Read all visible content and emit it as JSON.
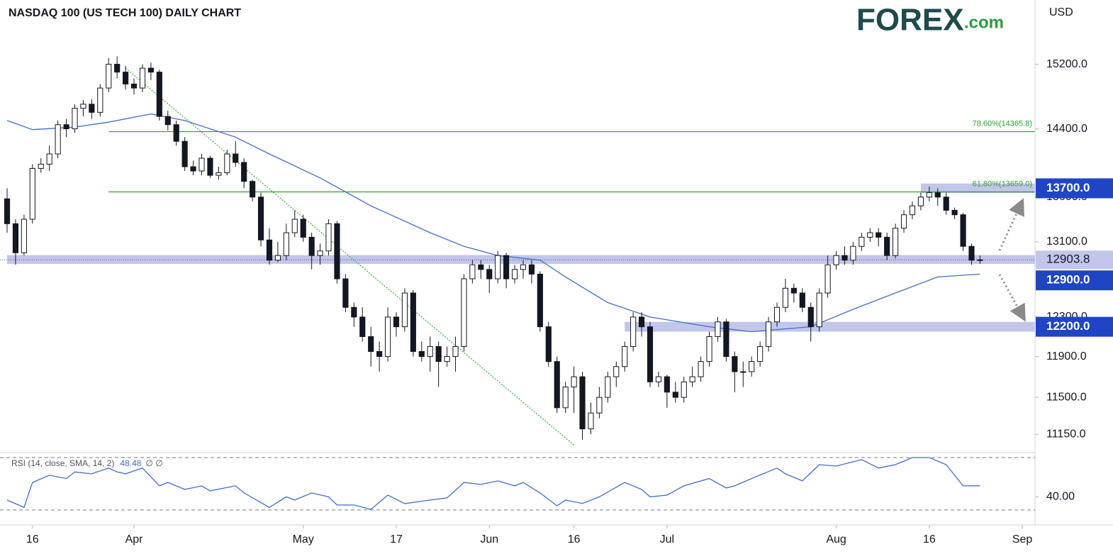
{
  "chart_data": {
    "type": "candlestick",
    "title": "NASDAQ 100 (US TECH 100) DAILY CHART",
    "logo": {
      "brand": "FOREX",
      "suffix": ".com"
    },
    "currency": "USD",
    "log": true,
    "colors": {
      "up": "#ffffff",
      "down": "#131722",
      "wick": "#131722"
    },
    "xlim": [
      -0.84,
      121.5
    ],
    "xticks": [
      {
        "value": 3,
        "label": "16"
      },
      {
        "value": 15,
        "label": "Apr"
      },
      {
        "value": 35,
        "label": "May"
      },
      {
        "value": 46,
        "label": "17"
      },
      {
        "value": 57,
        "label": "Jun"
      },
      {
        "value": 67,
        "label": "16"
      },
      {
        "value": 78,
        "label": "Jul"
      },
      {
        "value": 98,
        "label": "Aug"
      },
      {
        "value": 109,
        "label": "16"
      },
      {
        "value": 120,
        "label": "Sep"
      }
    ],
    "ylim": [
      10980,
      16040
    ],
    "yticks": [
      {
        "value": 15200,
        "label": "15200.0"
      },
      {
        "value": 14400,
        "label": "14400.0"
      },
      {
        "value": 13600,
        "label": "13600.0"
      },
      {
        "value": 13100,
        "label": "13100.0"
      },
      {
        "value": 12300,
        "label": "12300.0"
      },
      {
        "value": 11900,
        "label": "11900.0"
      },
      {
        "value": 11500,
        "label": "11500.0"
      },
      {
        "value": 11150,
        "label": "11150.0"
      }
    ],
    "x": [
      0,
      1,
      2,
      3,
      4,
      5,
      6,
      7,
      8,
      9,
      10,
      11,
      12,
      13,
      14,
      15,
      16,
      17,
      18,
      19,
      20,
      21,
      22,
      23,
      24,
      25,
      26,
      27,
      28,
      29,
      30,
      31,
      32,
      33,
      34,
      35,
      36,
      37,
      38,
      39,
      40,
      41,
      42,
      43,
      44,
      45,
      46,
      47,
      48,
      49,
      50,
      51,
      52,
      53,
      54,
      55,
      56,
      57,
      58,
      59,
      60,
      61,
      62,
      63,
      64,
      65,
      66,
      67,
      68,
      69,
      70,
      71,
      72,
      73,
      74,
      75,
      76,
      77,
      78,
      79,
      80,
      81,
      82,
      83,
      84,
      85,
      86,
      87,
      88,
      89,
      90,
      91,
      92,
      93,
      94,
      95,
      96,
      97,
      98,
      99,
      100,
      101,
      102,
      103,
      104,
      105,
      106,
      107,
      108,
      109,
      110,
      111,
      112,
      113,
      114,
      115
    ],
    "open": [
      13580,
      13300,
      12980,
      13350,
      13930,
      13980,
      14100,
      14450,
      14400,
      14650,
      14700,
      14600,
      14900,
      15200,
      15100,
      14950,
      14900,
      15150,
      15100,
      14550,
      14450,
      14250,
      13950,
      13900,
      14050,
      13850,
      13880,
      14100,
      14000,
      13780,
      13600,
      13120,
      12900,
      12950,
      13200,
      13350,
      13150,
      12950,
      13000,
      13300,
      12700,
      12400,
      12300,
      12100,
      11950,
      11900,
      12300,
      12200,
      12550,
      11950,
      11900,
      12000,
      11850,
      11900,
      12000,
      12700,
      12850,
      12800,
      12700,
      12950,
      12700,
      12800,
      12850,
      12750,
      12200,
      11850,
      11400,
      11600,
      11700,
      11200,
      11350,
      11500,
      11700,
      11800,
      12000,
      12300,
      12200,
      11650,
      11700,
      11550,
      11500,
      11650,
      11700,
      11850,
      12100,
      12250,
      11900,
      11750,
      11750,
      11850,
      12000,
      12250,
      12400,
      12600,
      12550,
      12400,
      12200,
      12550,
      12850,
      12950,
      12900,
      13050,
      13150,
      13200,
      13150,
      12950,
      13250,
      13400,
      13500,
      13600,
      13650,
      13600,
      13450,
      13400,
      13050,
      12900
    ],
    "high": [
      13700,
      13350,
      13400,
      13980,
      14050,
      14200,
      14500,
      14520,
      14700,
      14750,
      14760,
      14950,
      15280,
      15300,
      15180,
      15020,
      15200,
      15220,
      15130,
      14620,
      14500,
      14300,
      14020,
      14100,
      14080,
      13950,
      14150,
      14250,
      14050,
      13800,
      13650,
      13250,
      13100,
      13300,
      13450,
      13400,
      13200,
      13080,
      13350,
      13330,
      12750,
      12450,
      12400,
      12200,
      12050,
      12400,
      12350,
      12600,
      12580,
      12050,
      12100,
      12050,
      12000,
      12100,
      12750,
      12900,
      12900,
      12850,
      13000,
      12980,
      12850,
      12900,
      12900,
      12780,
      12250,
      11900,
      11650,
      11800,
      11750,
      11450,
      11600,
      11750,
      11850,
      12050,
      12350,
      12350,
      12250,
      11750,
      11720,
      11650,
      11700,
      11800,
      11900,
      12150,
      12300,
      12280,
      11950,
      11850,
      11900,
      12050,
      12300,
      12450,
      12700,
      12650,
      12600,
      12450,
      12600,
      12950,
      13000,
      13050,
      13100,
      13200,
      13250,
      13250,
      13200,
      13300,
      13450,
      13550,
      13650,
      13720,
      13700,
      13650,
      13480,
      13420,
      13080,
      12950
    ],
    "low": [
      13200,
      12850,
      12950,
      13300,
      13880,
      13900,
      14050,
      14300,
      14350,
      14550,
      14520,
      14550,
      14850,
      15020,
      14880,
      14820,
      14850,
      15000,
      14500,
      14380,
      14200,
      13900,
      13850,
      13850,
      13820,
      13800,
      13850,
      13950,
      13700,
      13550,
      13050,
      12850,
      12880,
      12900,
      13150,
      13100,
      12800,
      12850,
      12950,
      12650,
      12350,
      12200,
      12050,
      11800,
      11750,
      11850,
      12100,
      12150,
      11900,
      11850,
      11750,
      11600,
      11800,
      11750,
      11950,
      12650,
      12700,
      12550,
      12650,
      12600,
      12650,
      12700,
      12650,
      12150,
      11800,
      11350,
      11350,
      11350,
      11100,
      11150,
      11300,
      11450,
      11600,
      11750,
      11950,
      12100,
      11600,
      11600,
      11400,
      11450,
      11450,
      11600,
      11650,
      11800,
      12050,
      11850,
      11550,
      11600,
      11700,
      11800,
      11950,
      12200,
      12350,
      12450,
      12350,
      12050,
      12150,
      12500,
      12800,
      12850,
      12850,
      13000,
      13100,
      13050,
      12900,
      12920,
      13200,
      13350,
      13450,
      13550,
      13500,
      13400,
      13350,
      13000,
      12850,
      12860
    ],
    "close": [
      13300,
      12980,
      13350,
      13930,
      13980,
      14100,
      14450,
      14400,
      14650,
      14700,
      14600,
      14900,
      15200,
      15100,
      14950,
      14900,
      15150,
      15100,
      14550,
      14450,
      14250,
      13950,
      13900,
      14050,
      13850,
      13880,
      14100,
      14000,
      13780,
      13600,
      13120,
      12900,
      12950,
      13200,
      13350,
      13150,
      12950,
      13000,
      13300,
      12700,
      12400,
      12300,
      12100,
      11950,
      11900,
      12300,
      12200,
      12550,
      11950,
      11900,
      12000,
      11850,
      11900,
      12000,
      12700,
      12850,
      12800,
      12700,
      12950,
      12700,
      12800,
      12850,
      12750,
      12200,
      11850,
      11400,
      11600,
      11700,
      11200,
      11350,
      11500,
      11700,
      11800,
      12000,
      12300,
      12200,
      11650,
      11700,
      11550,
      11500,
      11650,
      11700,
      11850,
      12100,
      12250,
      11900,
      11750,
      11750,
      11850,
      12000,
      12250,
      12400,
      12600,
      12550,
      12400,
      12200,
      12550,
      12850,
      12950,
      12900,
      13050,
      13150,
      13200,
      13150,
      12950,
      13250,
      13400,
      13500,
      13600,
      13650,
      13600,
      13450,
      13400,
      13050,
      12900,
      12903.8
    ],
    "sma": {
      "color": "#3f6fc6",
      "x": [
        0,
        3,
        8,
        12,
        17,
        21,
        27,
        31,
        37,
        43,
        50,
        54,
        58,
        63,
        66,
        71,
        76,
        83,
        88,
        95,
        100,
        105,
        110,
        115
      ],
      "values": [
        14500,
        14390,
        14420,
        14480,
        14580,
        14500,
        14300,
        14100,
        13820,
        13500,
        13200,
        13050,
        12950,
        12900,
        12720,
        12450,
        12300,
        12200,
        12150,
        12200,
        12380,
        12550,
        12720,
        12750
      ]
    },
    "trendline": {
      "color": "#2fae2f",
      "x": [
        14,
        67
      ],
      "values": [
        15150,
        11050
      ]
    },
    "fib_color": "#29a329",
    "fib": [
      {
        "label": "78.60%(14365.8)",
        "value": 14365.8,
        "x": 12
      },
      {
        "label": "61.80%(13659.0)",
        "value": 13659.0,
        "x": 12
      }
    ],
    "zone_color": "#aeb3e3",
    "label_color": "#1f45c4",
    "zones": [
      {
        "label": "13700.0",
        "value": 13700,
        "low": 13645,
        "high": 13755,
        "x": 108
      },
      {
        "label": "12900.0",
        "value": 12900,
        "low": 12860,
        "high": 12955,
        "x": 0
      },
      {
        "label": "12200.0",
        "value": 12200,
        "low": 12150,
        "high": 12250,
        "x": 73
      }
    ],
    "last_price": 12903.8,
    "rsi": {
      "label": "RSI (14, close, SMA, 14, 2)",
      "na": "∅ ∅",
      "color": "#3f6fc6",
      "ylim": [
        18.6,
        72.7
      ],
      "yticks": [
        {
          "value": 40,
          "label": "40.00"
        }
      ],
      "levels": [
        30,
        70
      ],
      "x": [
        0,
        2,
        3,
        5,
        7,
        8,
        10,
        12,
        13,
        14,
        16,
        18,
        19,
        21,
        23,
        24,
        27,
        28,
        31,
        33,
        34,
        36,
        38,
        39,
        41,
        43,
        45,
        47,
        50,
        52,
        54,
        56,
        58,
        60,
        61,
        63,
        65,
        66,
        68,
        70,
        73,
        75,
        76,
        78,
        80,
        83,
        85,
        86,
        88,
        91,
        92,
        94,
        96,
        98,
        101,
        103,
        105,
        107,
        109,
        111,
        113,
        115
      ],
      "values": [
        37.6,
        32,
        51,
        56.5,
        54,
        59,
        57.6,
        62,
        59,
        57.6,
        62,
        48.4,
        51,
        45.7,
        48.4,
        44.6,
        48.4,
        43,
        32,
        40,
        37.6,
        43,
        40,
        33.8,
        33.8,
        30.5,
        41.4,
        34.9,
        37.6,
        39.2,
        51,
        49.5,
        52.2,
        48.4,
        51,
        43,
        33.2,
        37.6,
        35,
        40,
        51,
        45.7,
        40,
        41.4,
        48.4,
        54,
        46.8,
        48.4,
        54,
        62,
        57.6,
        52.2,
        64.6,
        63.5,
        68.4,
        62,
        64.6,
        70,
        70,
        64.6,
        48.4,
        48.48
      ]
    }
  }
}
